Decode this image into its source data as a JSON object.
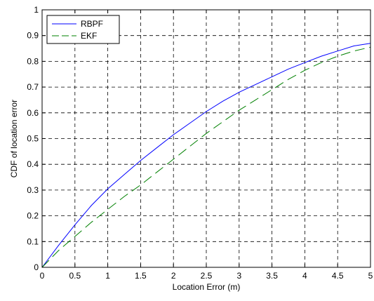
{
  "chart_data": {
    "type": "line",
    "title": "",
    "xlabel": "Location Error (m)",
    "ylabel": "CDF of location error",
    "xlim": [
      0,
      5
    ],
    "ylim": [
      0,
      1
    ],
    "xticks": [
      "0",
      "0.5",
      "1",
      "1.5",
      "2",
      "2.5",
      "3",
      "3.5",
      "4",
      "4.5",
      "5"
    ],
    "yticks": [
      "0",
      "0.1",
      "0.2",
      "0.3",
      "0.4",
      "0.5",
      "0.6",
      "0.7",
      "0.8",
      "0.9",
      "1"
    ],
    "grid": true,
    "legend_position": "top-left",
    "series": [
      {
        "name": "RBPF",
        "color": "#0000ff",
        "dash": "solid",
        "x": [
          0,
          0.25,
          0.5,
          0.75,
          1.0,
          1.25,
          1.5,
          1.75,
          2.0,
          2.25,
          2.5,
          2.75,
          3.0,
          3.25,
          3.5,
          3.75,
          4.0,
          4.25,
          4.5,
          4.75,
          5.0
        ],
        "values": [
          0,
          0.085,
          0.165,
          0.24,
          0.305,
          0.36,
          0.415,
          0.465,
          0.515,
          0.56,
          0.605,
          0.645,
          0.68,
          0.71,
          0.74,
          0.77,
          0.795,
          0.82,
          0.84,
          0.86,
          0.87
        ]
      },
      {
        "name": "EKF",
        "color": "#008000",
        "dash": "dashed",
        "x": [
          0,
          0.25,
          0.5,
          0.75,
          1.0,
          1.25,
          1.5,
          1.75,
          2.0,
          2.25,
          2.5,
          2.75,
          3.0,
          3.25,
          3.5,
          3.75,
          4.0,
          4.25,
          4.5,
          4.75,
          5.0
        ],
        "values": [
          0,
          0.065,
          0.12,
          0.175,
          0.225,
          0.275,
          0.32,
          0.37,
          0.42,
          0.47,
          0.52,
          0.565,
          0.61,
          0.65,
          0.69,
          0.73,
          0.765,
          0.795,
          0.82,
          0.84,
          0.855
        ]
      }
    ]
  }
}
